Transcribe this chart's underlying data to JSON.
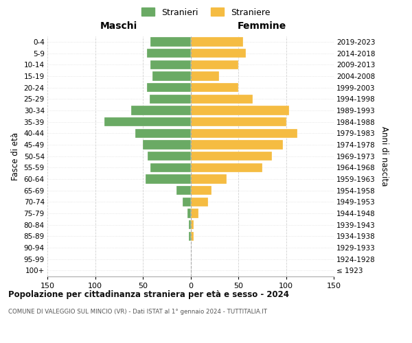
{
  "age_groups": [
    "100+",
    "95-99",
    "90-94",
    "85-89",
    "80-84",
    "75-79",
    "70-74",
    "65-69",
    "60-64",
    "55-59",
    "50-54",
    "45-49",
    "40-44",
    "35-39",
    "30-34",
    "25-29",
    "20-24",
    "15-19",
    "10-14",
    "5-9",
    "0-4"
  ],
  "birth_years": [
    "≤ 1923",
    "1924-1928",
    "1929-1933",
    "1934-1938",
    "1939-1943",
    "1944-1948",
    "1949-1953",
    "1954-1958",
    "1959-1963",
    "1964-1968",
    "1969-1973",
    "1974-1978",
    "1979-1983",
    "1984-1988",
    "1989-1993",
    "1994-1998",
    "1999-2003",
    "2004-2008",
    "2009-2013",
    "2014-2018",
    "2019-2023"
  ],
  "males": [
    0,
    0,
    0,
    2,
    2,
    3,
    8,
    15,
    47,
    42,
    45,
    50,
    58,
    90,
    62,
    43,
    46,
    40,
    42,
    46,
    42
  ],
  "females": [
    0,
    0,
    0,
    3,
    3,
    8,
    18,
    22,
    38,
    75,
    85,
    97,
    112,
    100,
    103,
    65,
    50,
    30,
    50,
    58,
    55
  ],
  "male_color": "#6aaa64",
  "female_color": "#f5bc42",
  "bg_color": "#ffffff",
  "grid_color": "#cccccc",
  "title": "Popolazione per cittadinanza straniera per età e sesso - 2024",
  "subtitle": "COMUNE DI VALEGGIO SUL MINCIO (VR) - Dati ISTAT al 1° gennaio 2024 - TUTTITALIA.IT",
  "header_left": "Maschi",
  "header_right": "Femmine",
  "ylabel_left": "Fasce di età",
  "ylabel_right": "Anni di nascita",
  "legend_males": "Stranieri",
  "legend_females": "Straniere",
  "xlim": 150
}
